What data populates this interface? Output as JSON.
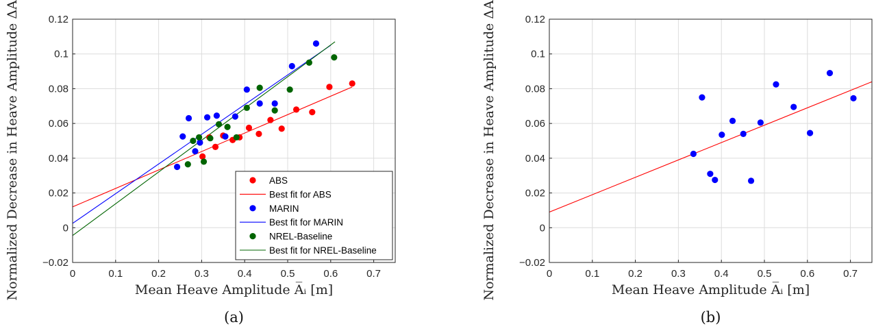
{
  "chart_data": [
    {
      "type": "scatter",
      "panel_label": "(a)",
      "xlabel": "Mean Heave Amplitude A̅ᵢ [m]",
      "ylabel": "Normalized Decrease in Heave Amplitude ΔAᵢ/A̅ᵢ",
      "xlim": [
        0,
        0.75
      ],
      "ylim": [
        -0.02,
        0.12
      ],
      "xticks": [
        "0",
        "0.1",
        "0.2",
        "0.3",
        "0.4",
        "0.5",
        "0.6",
        "0.7"
      ],
      "yticks": [
        "−0.02",
        "0",
        "0.02",
        "0.04",
        "0.06",
        "0.08",
        "0.1",
        "0.12"
      ],
      "grid": true,
      "legend_position": "bottom-right",
      "series": [
        {
          "name": "ABS",
          "color": "#ff0000",
          "x": [
            0.302,
            0.318,
            0.332,
            0.35,
            0.372,
            0.388,
            0.41,
            0.433,
            0.46,
            0.486,
            0.52,
            0.557,
            0.597,
            0.65
          ],
          "y": [
            0.041,
            0.052,
            0.0465,
            0.053,
            0.0505,
            0.052,
            0.0575,
            0.054,
            0.062,
            0.057,
            0.068,
            0.0665,
            0.081,
            0.083
          ]
        },
        {
          "name": "MARIN",
          "color": "#0000ff",
          "x": [
            0.243,
            0.256,
            0.27,
            0.285,
            0.296,
            0.313,
            0.335,
            0.355,
            0.378,
            0.405,
            0.435,
            0.47,
            0.51,
            0.566
          ],
          "y": [
            0.035,
            0.0525,
            0.063,
            0.044,
            0.049,
            0.0635,
            0.0645,
            0.0525,
            0.064,
            0.0795,
            0.0715,
            0.0715,
            0.093,
            0.106
          ]
        },
        {
          "name": "NREL-Baseline",
          "color": "#006400",
          "x": [
            0.268,
            0.28,
            0.294,
            0.305,
            0.32,
            0.34,
            0.36,
            0.381,
            0.405,
            0.435,
            0.47,
            0.505,
            0.55,
            0.608
          ],
          "y": [
            0.0365,
            0.05,
            0.052,
            0.038,
            0.0515,
            0.0595,
            0.058,
            0.052,
            0.069,
            0.0805,
            0.0675,
            0.0795,
            0.095,
            0.098
          ]
        }
      ],
      "fits": [
        {
          "name": "Best fit for ABS",
          "color": "#ff0000",
          "x": [
            0,
            0.65
          ],
          "y": [
            0.012,
            0.081
          ]
        },
        {
          "name": "Best fit for MARIN",
          "color": "#0000ff",
          "x": [
            0,
            0.6
          ],
          "y": [
            0.0025,
            0.105
          ]
        },
        {
          "name": "Best fit for NREL-Baseline",
          "color": "#006400",
          "x": [
            0,
            0.61
          ],
          "y": [
            -0.0045,
            0.107
          ]
        }
      ]
    },
    {
      "type": "scatter",
      "panel_label": "(b)",
      "xlabel": "Mean Heave Amplitude A̅ᵢ [m]",
      "ylabel": "Normalized Decrease in Heave Amplitude ΔAᵢ/A̅ᵢ",
      "xlim": [
        0,
        0.75
      ],
      "ylim": [
        -0.02,
        0.12
      ],
      "xticks": [
        "0",
        "0.1",
        "0.2",
        "0.3",
        "0.4",
        "0.5",
        "0.6",
        "0.7"
      ],
      "yticks": [
        "−0.02",
        "0",
        "0.02",
        "0.04",
        "0.06",
        "0.08",
        "0.1",
        "0.12"
      ],
      "grid": true,
      "series": [
        {
          "color": "#0000ff",
          "x": [
            0.335,
            0.355,
            0.374,
            0.385,
            0.401,
            0.426,
            0.451,
            0.469,
            0.491,
            0.527,
            0.568,
            0.606,
            0.652,
            0.707
          ],
          "y": [
            0.0425,
            0.075,
            0.031,
            0.0275,
            0.0535,
            0.0615,
            0.054,
            0.027,
            0.0605,
            0.0825,
            0.0695,
            0.0545,
            0.089,
            0.0745
          ]
        }
      ],
      "fits": [
        {
          "color": "#ff0000",
          "x": [
            0,
            0.75
          ],
          "y": [
            0.009,
            0.084
          ]
        }
      ]
    }
  ]
}
